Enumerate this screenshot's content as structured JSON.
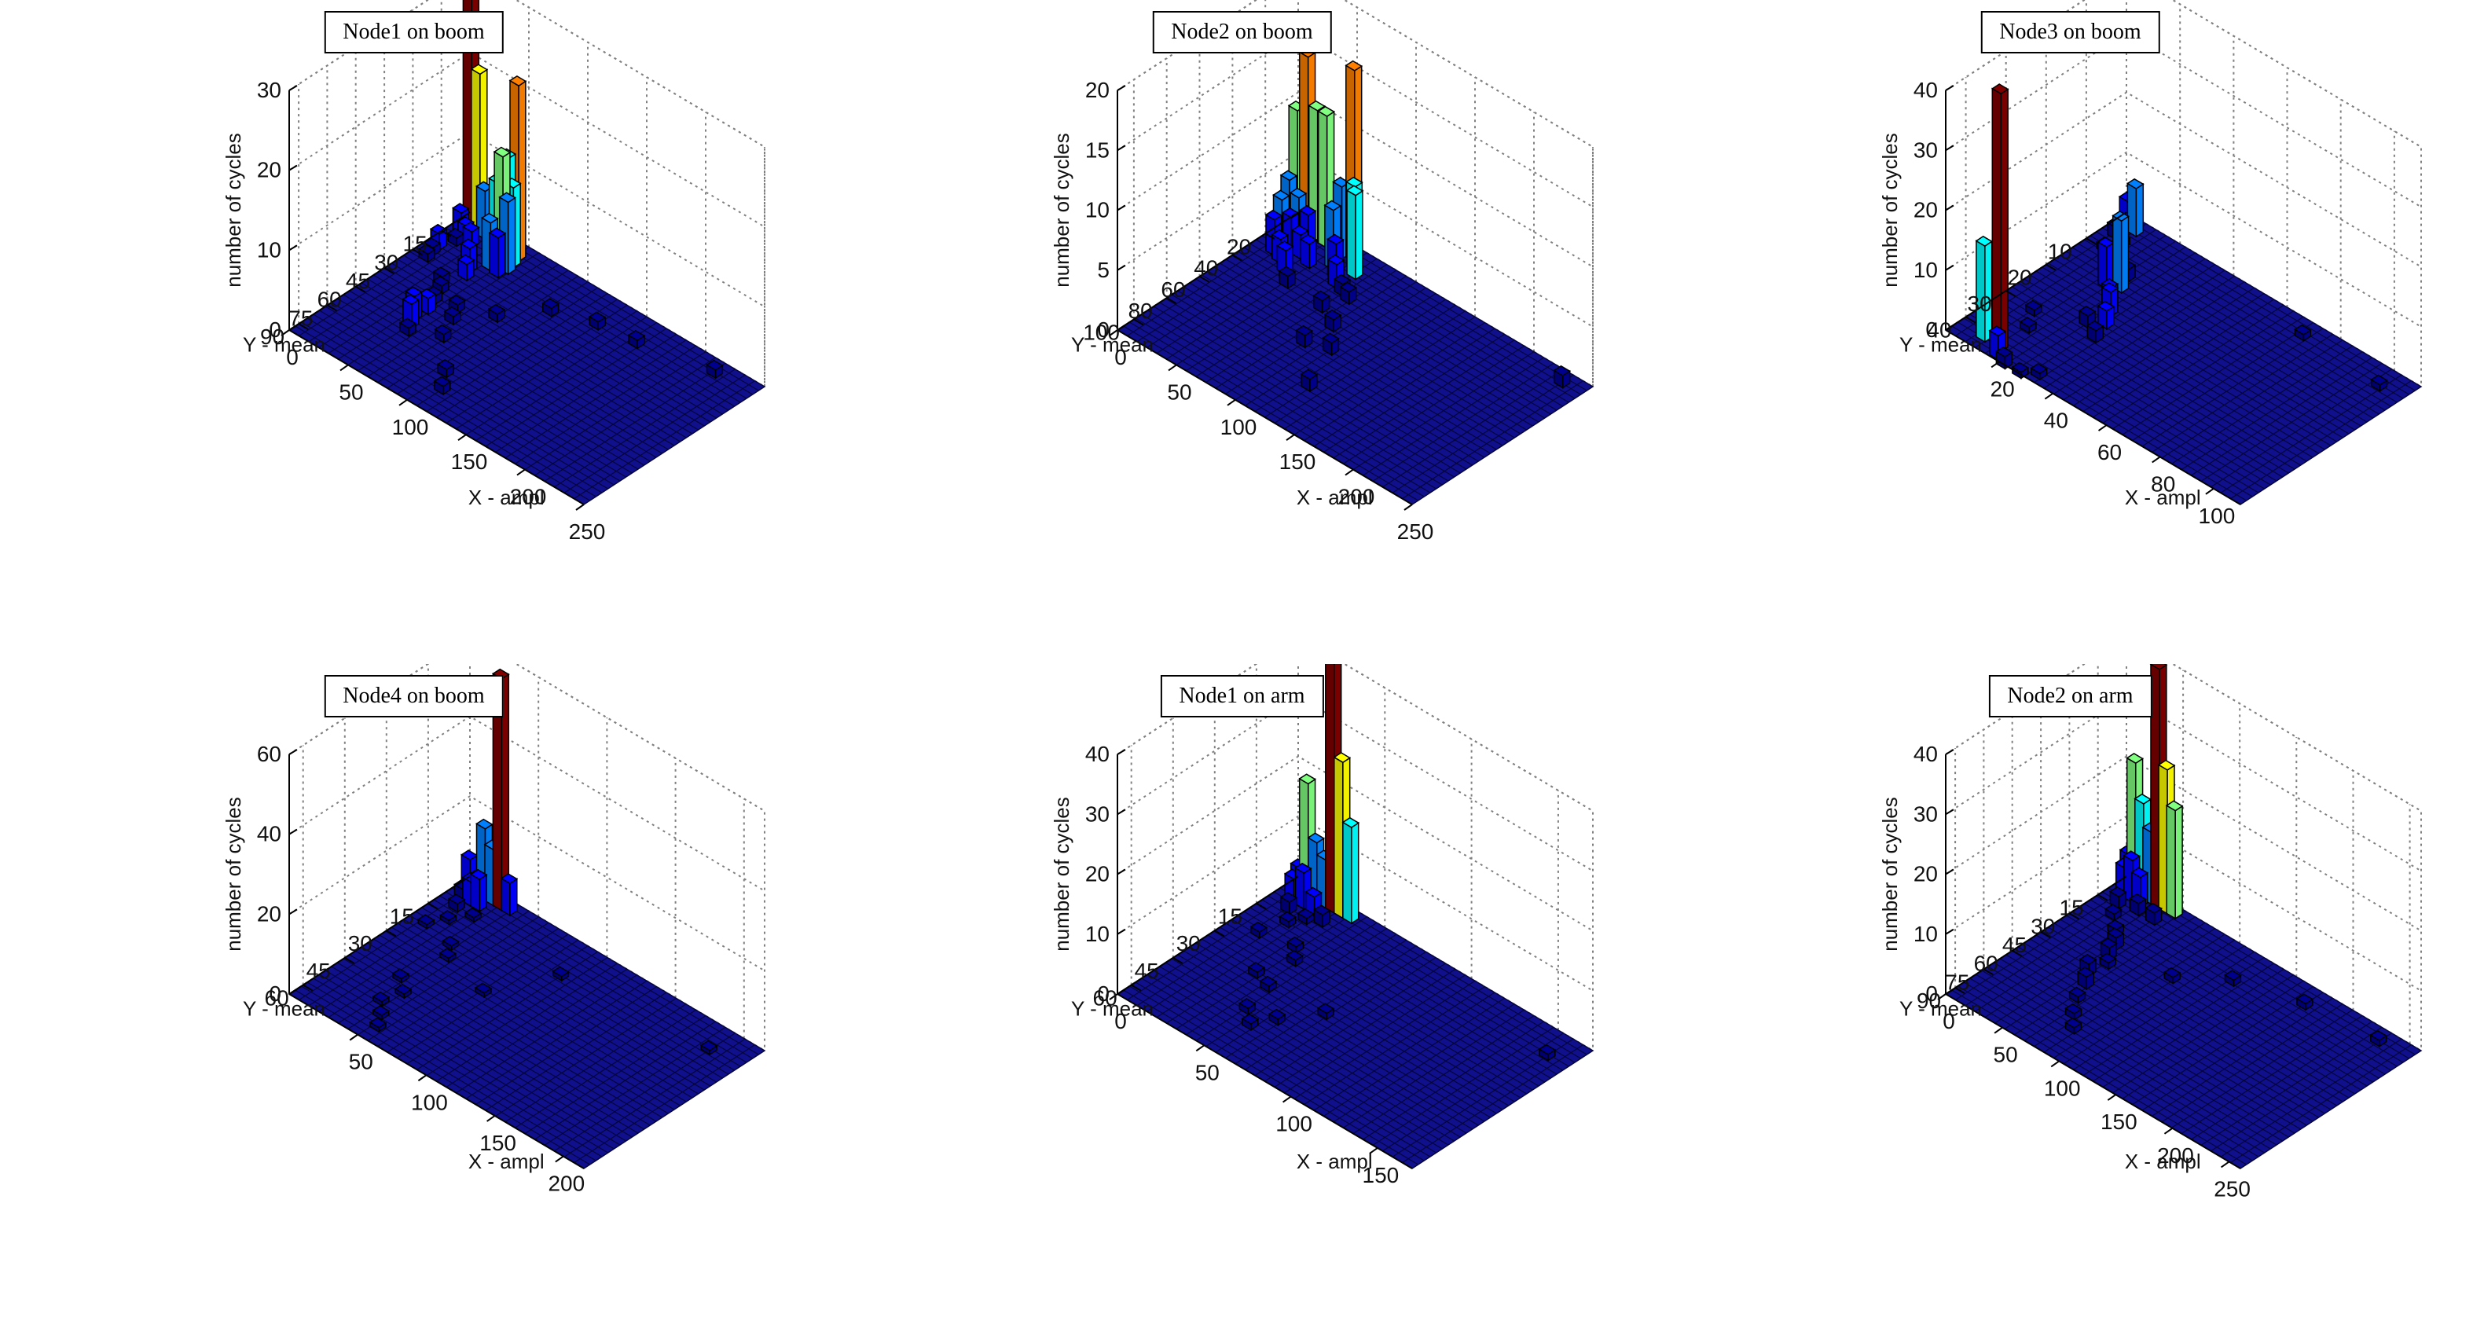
{
  "figure": {
    "colors": {
      "floor": "#10108c",
      "floor_edge": "#05053c",
      "grid": "#808080",
      "jet": [
        "#00008f",
        "#0000ff",
        "#0080ff",
        "#00ffff",
        "#80ff80",
        "#ffff00",
        "#ff8000",
        "#ff0000",
        "#800000"
      ]
    }
  },
  "chart_data": [
    {
      "type": "bar3d",
      "title": "Node1 on boom",
      "xlabel": "X - ampl",
      "ylabel": "Y - mean",
      "zlabel": "number of cycles",
      "xticks": [
        "0",
        "50",
        "100",
        "150",
        "200",
        "250"
      ],
      "yticks": [
        "15",
        "30",
        "45",
        "60",
        "75",
        "90"
      ],
      "zticks": [
        "0",
        "10",
        "20",
        "30"
      ],
      "xlim": [
        0,
        250
      ],
      "ylim": [
        0,
        95
      ],
      "zlim": [
        0,
        30
      ],
      "bars": [
        {
          "x": 5,
          "y": 3,
          "z": 30
        },
        {
          "x": 12,
          "y": 3,
          "z": 20
        },
        {
          "x": 18,
          "y": 4,
          "z": 6
        },
        {
          "x": 6,
          "y": 9,
          "z": 3
        },
        {
          "x": 12,
          "y": 10,
          "z": 2
        },
        {
          "x": 18,
          "y": 11,
          "z": 2
        },
        {
          "x": 10,
          "y": 14,
          "z": 1
        },
        {
          "x": 5,
          "y": 20,
          "z": 2
        },
        {
          "x": 6,
          "y": 24,
          "z": 1
        },
        {
          "x": 8,
          "y": 28,
          "z": 1
        },
        {
          "x": 38,
          "y": 5,
          "z": 10
        },
        {
          "x": 48,
          "y": 5,
          "z": 22
        },
        {
          "x": 44,
          "y": 8,
          "z": 13
        },
        {
          "x": 50,
          "y": 9,
          "z": 10
        },
        {
          "x": 40,
          "y": 11,
          "z": 10
        },
        {
          "x": 46,
          "y": 12,
          "z": 14
        },
        {
          "x": 52,
          "y": 13,
          "z": 9
        },
        {
          "x": 42,
          "y": 16,
          "z": 6
        },
        {
          "x": 50,
          "y": 17,
          "z": 5
        },
        {
          "x": 34,
          "y": 22,
          "z": 3
        },
        {
          "x": 38,
          "y": 26,
          "z": 2
        },
        {
          "x": 30,
          "y": 34,
          "z": 1
        },
        {
          "x": 36,
          "y": 38,
          "z": 1
        },
        {
          "x": 40,
          "y": 44,
          "z": 1
        },
        {
          "x": 44,
          "y": 50,
          "z": 2
        },
        {
          "x": 42,
          "y": 56,
          "z": 3
        },
        {
          "x": 46,
          "y": 60,
          "z": 3
        },
        {
          "x": 50,
          "y": 64,
          "z": 1
        },
        {
          "x": 56,
          "y": 42,
          "z": 1
        },
        {
          "x": 62,
          "y": 48,
          "z": 1
        },
        {
          "x": 70,
          "y": 58,
          "z": 1
        },
        {
          "x": 80,
          "y": 36,
          "z": 1
        },
        {
          "x": 100,
          "y": 20,
          "z": 1
        },
        {
          "x": 130,
          "y": 14,
          "z": 1
        },
        {
          "x": 160,
          "y": 12,
          "z": 1
        },
        {
          "x": 215,
          "y": 5,
          "z": 1
        },
        {
          "x": 95,
          "y": 72,
          "z": 1
        },
        {
          "x": 105,
          "y": 80,
          "z": 1
        }
      ]
    },
    {
      "type": "bar3d",
      "title": "Node2 on boom",
      "xlabel": "X - ampl",
      "ylabel": "Y - mean",
      "zlabel": "number of cycles",
      "xticks": [
        "0",
        "50",
        "100",
        "150",
        "200",
        "250"
      ],
      "yticks": [
        "20",
        "40",
        "60",
        "80",
        "100"
      ],
      "zticks": [
        "0",
        "5",
        "10",
        "15",
        "20"
      ],
      "xlim": [
        0,
        250
      ],
      "ylim": [
        0,
        110
      ],
      "zlim": [
        0,
        20
      ],
      "bars": [
        {
          "x": 5,
          "y": 5,
          "z": 10
        },
        {
          "x": 14,
          "y": 5,
          "z": 15
        },
        {
          "x": 22,
          "y": 5,
          "z": 11
        },
        {
          "x": 30,
          "y": 5,
          "z": 11
        },
        {
          "x": 8,
          "y": 12,
          "z": 5
        },
        {
          "x": 16,
          "y": 12,
          "z": 4
        },
        {
          "x": 24,
          "y": 12,
          "z": 3
        },
        {
          "x": 10,
          "y": 18,
          "z": 4
        },
        {
          "x": 18,
          "y": 18,
          "z": 3
        },
        {
          "x": 26,
          "y": 18,
          "z": 2
        },
        {
          "x": 12,
          "y": 24,
          "z": 3
        },
        {
          "x": 20,
          "y": 26,
          "z": 2
        },
        {
          "x": 30,
          "y": 30,
          "z": 2
        },
        {
          "x": 36,
          "y": 20,
          "z": 2
        },
        {
          "x": 44,
          "y": 6,
          "z": 6
        },
        {
          "x": 52,
          "y": 4,
          "z": 16
        },
        {
          "x": 58,
          "y": 8,
          "z": 7
        },
        {
          "x": 64,
          "y": 12,
          "z": 7
        },
        {
          "x": 48,
          "y": 14,
          "z": 5
        },
        {
          "x": 56,
          "y": 18,
          "z": 3
        },
        {
          "x": 62,
          "y": 22,
          "z": 2
        },
        {
          "x": 70,
          "y": 24,
          "z": 1
        },
        {
          "x": 78,
          "y": 26,
          "z": 1
        },
        {
          "x": 72,
          "y": 38,
          "z": 1
        },
        {
          "x": 90,
          "y": 44,
          "z": 1
        },
        {
          "x": 105,
          "y": 56,
          "z": 1
        },
        {
          "x": 88,
          "y": 60,
          "z": 1
        },
        {
          "x": 120,
          "y": 80,
          "z": 1
        },
        {
          "x": 230,
          "y": 5,
          "z": 1
        },
        {
          "x": 40,
          "y": 36,
          "z": 1
        }
      ]
    },
    {
      "type": "bar3d",
      "title": "Node3 on boom",
      "xlabel": "X - ampl",
      "ylabel": "Y - mean",
      "zlabel": "number of cycles",
      "xticks": [
        "20",
        "40",
        "60",
        "80",
        "100"
      ],
      "yticks": [
        "10",
        "20",
        "30",
        "40"
      ],
      "zticks": [
        "0",
        "10",
        "20",
        "30",
        "40"
      ],
      "xlim": [
        0,
        110
      ],
      "ylim": [
        0,
        45
      ],
      "zlim": [
        0,
        40
      ],
      "bars": [
        {
          "x": 3,
          "y": 2,
          "z": 5
        },
        {
          "x": 6,
          "y": 2,
          "z": 8
        },
        {
          "x": 3,
          "y": 5,
          "z": 2
        },
        {
          "x": 7,
          "y": 6,
          "z": 1
        },
        {
          "x": 5,
          "y": 9,
          "z": 1
        },
        {
          "x": 10,
          "y": 12,
          "z": 1
        },
        {
          "x": 18,
          "y": 12,
          "z": 2
        },
        {
          "x": 20,
          "y": 15,
          "z": 12
        },
        {
          "x": 16,
          "y": 16,
          "z": 7
        },
        {
          "x": 22,
          "y": 19,
          "z": 3
        },
        {
          "x": 25,
          "y": 21,
          "z": 4
        },
        {
          "x": 28,
          "y": 24,
          "z": 3
        },
        {
          "x": 24,
          "y": 26,
          "z": 2
        },
        {
          "x": 30,
          "y": 28,
          "z": 2
        },
        {
          "x": 10,
          "y": 30,
          "z": 1
        },
        {
          "x": 14,
          "y": 34,
          "z": 1
        },
        {
          "x": 8,
          "y": 38,
          "z": 1
        },
        {
          "x": 8,
          "y": 41,
          "z": 16
        },
        {
          "x": 14,
          "y": 41,
          "z": 43
        },
        {
          "x": 16,
          "y": 43,
          "z": 4
        },
        {
          "x": 20,
          "y": 44,
          "z": 2
        },
        {
          "x": 26,
          "y": 44,
          "z": 1
        },
        {
          "x": 30,
          "y": 42,
          "z": 1
        },
        {
          "x": 70,
          "y": 3,
          "z": 1
        },
        {
          "x": 100,
          "y": 4,
          "z": 1
        }
      ]
    },
    {
      "type": "bar3d",
      "title": "Node4 on boom",
      "xlabel": "X - ampl",
      "ylabel": "Y - mean",
      "zlabel": "number of cycles",
      "xticks": [
        "50",
        "100",
        "150",
        "200"
      ],
      "yticks": [
        "15",
        "30",
        "45",
        "60"
      ],
      "zticks": [
        "0",
        "20",
        "40",
        "60"
      ],
      "xlim": [
        0,
        215
      ],
      "ylim": [
        0,
        65
      ],
      "zlim": [
        0,
        60
      ],
      "bars": [
        {
          "x": 3,
          "y": 2,
          "z": 8
        },
        {
          "x": 8,
          "y": 2,
          "z": 4
        },
        {
          "x": 14,
          "y": 2,
          "z": 18
        },
        {
          "x": 20,
          "y": 2,
          "z": 14
        },
        {
          "x": 26,
          "y": 2,
          "z": 58
        },
        {
          "x": 32,
          "y": 2,
          "z": 8
        },
        {
          "x": 6,
          "y": 6,
          "z": 3
        },
        {
          "x": 12,
          "y": 6,
          "z": 6
        },
        {
          "x": 18,
          "y": 6,
          "z": 8
        },
        {
          "x": 10,
          "y": 10,
          "z": 2
        },
        {
          "x": 22,
          "y": 10,
          "z": 1
        },
        {
          "x": 14,
          "y": 15,
          "z": 1
        },
        {
          "x": 8,
          "y": 20,
          "z": 1
        },
        {
          "x": 30,
          "y": 22,
          "z": 1
        },
        {
          "x": 36,
          "y": 26,
          "z": 1
        },
        {
          "x": 30,
          "y": 40,
          "z": 1
        },
        {
          "x": 40,
          "y": 44,
          "z": 1
        },
        {
          "x": 36,
          "y": 50,
          "z": 1
        },
        {
          "x": 44,
          "y": 54,
          "z": 1
        },
        {
          "x": 50,
          "y": 58,
          "z": 1
        },
        {
          "x": 70,
          "y": 30,
          "z": 1
        },
        {
          "x": 90,
          "y": 12,
          "z": 1
        },
        {
          "x": 190,
          "y": 8,
          "z": 1
        }
      ]
    },
    {
      "type": "bar3d",
      "title": "Node1 on arm",
      "xlabel": "X - ampl",
      "ylabel": "Y - mean",
      "zlabel": "number of cycles",
      "xticks": [
        "0",
        "50",
        "100",
        "150"
      ],
      "yticks": [
        "15",
        "30",
        "45",
        "60"
      ],
      "zticks": [
        "0",
        "10",
        "20",
        "30",
        "40"
      ],
      "xlim": [
        0,
        170
      ],
      "ylim": [
        0,
        65
      ],
      "zlim": [
        0,
        40
      ],
      "bars": [
        {
          "x": 3,
          "y": 2,
          "z": 4
        },
        {
          "x": 8,
          "y": 2,
          "z": 19
        },
        {
          "x": 13,
          "y": 2,
          "z": 10
        },
        {
          "x": 18,
          "y": 2,
          "z": 8
        },
        {
          "x": 23,
          "y": 2,
          "z": 44
        },
        {
          "x": 28,
          "y": 2,
          "z": 26
        },
        {
          "x": 33,
          "y": 2,
          "z": 16
        },
        {
          "x": 6,
          "y": 6,
          "z": 4
        },
        {
          "x": 12,
          "y": 6,
          "z": 6
        },
        {
          "x": 18,
          "y": 6,
          "z": 3
        },
        {
          "x": 10,
          "y": 10,
          "z": 2
        },
        {
          "x": 20,
          "y": 10,
          "z": 1
        },
        {
          "x": 26,
          "y": 8,
          "z": 2
        },
        {
          "x": 16,
          "y": 14,
          "z": 1
        },
        {
          "x": 12,
          "y": 22,
          "z": 1
        },
        {
          "x": 30,
          "y": 20,
          "z": 1
        },
        {
          "x": 36,
          "y": 24,
          "z": 1
        },
        {
          "x": 30,
          "y": 34,
          "z": 1
        },
        {
          "x": 40,
          "y": 36,
          "z": 1
        },
        {
          "x": 44,
          "y": 46,
          "z": 1
        },
        {
          "x": 52,
          "y": 50,
          "z": 1
        },
        {
          "x": 58,
          "y": 44,
          "z": 1
        },
        {
          "x": 70,
          "y": 34,
          "z": 1
        },
        {
          "x": 156,
          "y": 8,
          "z": 1
        }
      ]
    },
    {
      "type": "bar3d",
      "title": "Node2 on arm",
      "xlabel": "X - ampl",
      "ylabel": "Y - mean",
      "zlabel": "number of cycles",
      "xticks": [
        "0",
        "50",
        "100",
        "150",
        "200",
        "250"
      ],
      "yticks": [
        "15",
        "30",
        "45",
        "60",
        "75",
        "90"
      ],
      "zticks": [
        "0",
        "10",
        "20",
        "30",
        "40"
      ],
      "xlim": [
        0,
        260
      ],
      "ylim": [
        0,
        95
      ],
      "zlim": [
        0,
        40
      ],
      "bars": [
        {
          "x": 4,
          "y": 2,
          "z": 6
        },
        {
          "x": 10,
          "y": 2,
          "z": 22
        },
        {
          "x": 17,
          "y": 2,
          "z": 16
        },
        {
          "x": 24,
          "y": 2,
          "z": 12
        },
        {
          "x": 31,
          "y": 2,
          "z": 40
        },
        {
          "x": 38,
          "y": 2,
          "z": 24
        },
        {
          "x": 45,
          "y": 2,
          "z": 18
        },
        {
          "x": 7,
          "y": 6,
          "z": 5
        },
        {
          "x": 14,
          "y": 6,
          "z": 7
        },
        {
          "x": 21,
          "y": 6,
          "z": 5
        },
        {
          "x": 12,
          "y": 12,
          "z": 2
        },
        {
          "x": 26,
          "y": 10,
          "z": 2
        },
        {
          "x": 40,
          "y": 10,
          "z": 2
        },
        {
          "x": 18,
          "y": 18,
          "z": 1
        },
        {
          "x": 30,
          "y": 24,
          "z": 1
        },
        {
          "x": 40,
          "y": 30,
          "z": 2
        },
        {
          "x": 44,
          "y": 36,
          "z": 2
        },
        {
          "x": 50,
          "y": 40,
          "z": 1
        },
        {
          "x": 46,
          "y": 48,
          "z": 2
        },
        {
          "x": 54,
          "y": 54,
          "z": 2
        },
        {
          "x": 60,
          "y": 62,
          "z": 1
        },
        {
          "x": 70,
          "y": 70,
          "z": 1
        },
        {
          "x": 80,
          "y": 76,
          "z": 1
        },
        {
          "x": 90,
          "y": 30,
          "z": 1
        },
        {
          "x": 120,
          "y": 16,
          "z": 1
        },
        {
          "x": 170,
          "y": 8,
          "z": 1
        },
        {
          "x": 230,
          "y": 5,
          "z": 1
        }
      ]
    }
  ]
}
